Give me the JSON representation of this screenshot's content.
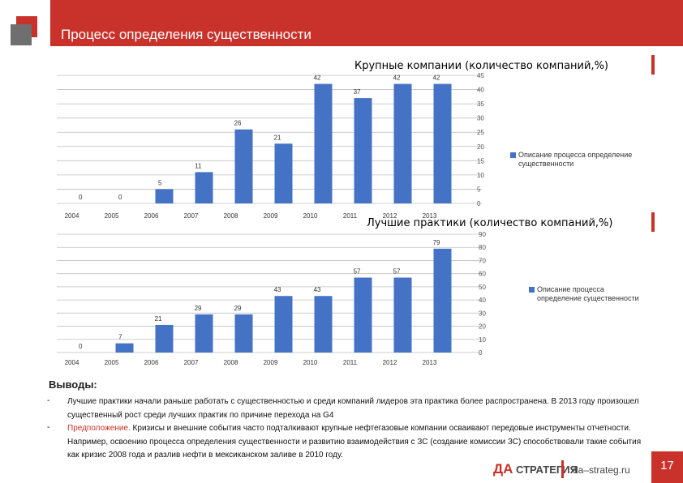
{
  "header": {
    "title": "Процесс определения существенности"
  },
  "chart_data": [
    {
      "type": "bar",
      "title": "Крупные компании (количество компаний,%)",
      "categories": [
        "2004",
        "2005",
        "2006",
        "2007",
        "2008",
        "2009",
        "2010",
        "2011",
        "2012",
        "2013"
      ],
      "values": [
        0,
        0,
        5,
        11,
        26,
        21,
        42,
        37,
        42,
        42
      ],
      "ylim": [
        0,
        45
      ],
      "yticks": [
        0,
        5,
        10,
        15,
        20,
        25,
        30,
        35,
        40,
        45
      ],
      "grid": true,
      "legend": {
        "label": "Описание процесса определение существенности",
        "placement": "right"
      },
      "colors": {
        "bar": "#4472c4"
      }
    },
    {
      "type": "bar",
      "title": "Лучшие практики (количество компаний,%)",
      "categories": [
        "2004",
        "2005",
        "2006",
        "2007",
        "2008",
        "2009",
        "2010",
        "2011",
        "2012",
        "2013"
      ],
      "values": [
        0,
        7,
        21,
        29,
        29,
        43,
        43,
        57,
        57,
        79
      ],
      "ylim": [
        0,
        90
      ],
      "yticks": [
        0,
        10,
        20,
        30,
        40,
        50,
        60,
        70,
        80,
        90
      ],
      "grid": true,
      "legend": {
        "label": "Описание процесса определение существенности",
        "placement": "right"
      },
      "colors": {
        "bar": "#4472c4"
      }
    }
  ],
  "conclusions": {
    "title": "Выводы:",
    "bullet": "-",
    "item1": "Лучшие практики начали раньше работать с существенностью и среди компаний лидеров эта практика более распространена. В 2013 году произошел существенный рост среди лучших практик по причине перехода на G4",
    "item2_emphasis": "Предположение.",
    "item2_text": " Кризисы и внешние события часто подталкивают крупные нефтегазовые компании осваивают передовые инструменты отчетности. Например, освоению процесса определения существенности и развитию взаимодействия с ЗС (создание комиссии ЗС) способствовали такие события как кризис 2008 года и разлив нефти в мексиканском заливе в 2010 году."
  },
  "footer": {
    "brand_prefix": "ДА",
    "brand_suffix": "СТРАТЕГИЯ",
    "url": "da–strateg.ru",
    "page_number": "17"
  },
  "colors": {
    "accent": "#c8322b",
    "bar": "#4472c4",
    "logo_grey": "#6f6f6f"
  }
}
